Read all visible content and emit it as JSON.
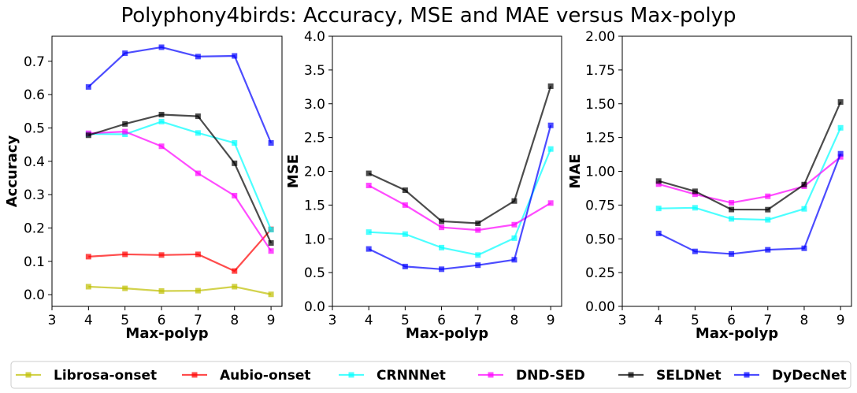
{
  "title": "Polyphony4birds: Accuracy, MSE and MAE versus Max-polyp",
  "legend": {
    "placement": "bottom-center",
    "entries": [
      "Librosa-onset",
      "Aubio-onset",
      "CRNNNet",
      "DND-SED",
      "SELDNet",
      "DyDecNet"
    ]
  },
  "series_colors": {
    "Librosa-onset": "#bfbf00",
    "Aubio-onset": "#ff0000",
    "CRNNNet": "#00ffff",
    "DND-SED": "#ff00ff",
    "SELDNet": "#000000",
    "DyDecNet": "#0000ff"
  },
  "chart_data": [
    {
      "type": "line",
      "xlabel": "Max-polyp",
      "ylabel": "Accuracy",
      "x": [
        4,
        5,
        6,
        7,
        8,
        9
      ],
      "xlim": [
        3,
        9.3
      ],
      "ylim": [
        -0.035,
        0.775
      ],
      "xticks": [
        3,
        4,
        5,
        6,
        7,
        8,
        9
      ],
      "yticks": [
        0.0,
        0.1,
        0.2,
        0.3,
        0.4,
        0.5,
        0.6,
        0.7
      ],
      "ytick_labels": [
        "0.0",
        "0.1",
        "0.2",
        "0.3",
        "0.4",
        "0.5",
        "0.6",
        "0.7"
      ],
      "grid": false,
      "series": [
        {
          "name": "Librosa-onset",
          "values": [
            0.024,
            0.019,
            0.011,
            0.012,
            0.024,
            0.001
          ]
        },
        {
          "name": "Aubio-onset",
          "values": [
            0.114,
            0.121,
            0.119,
            0.121,
            0.071,
            0.196
          ]
        },
        {
          "name": "CRNNNet",
          "values": [
            0.482,
            0.481,
            0.519,
            0.485,
            0.455,
            0.195
          ]
        },
        {
          "name": "DND-SED",
          "values": [
            0.484,
            0.489,
            0.445,
            0.364,
            0.297,
            0.131
          ]
        },
        {
          "name": "SELDNet",
          "values": [
            0.478,
            0.512,
            0.54,
            0.535,
            0.394,
            0.155
          ]
        },
        {
          "name": "DyDecNet",
          "values": [
            0.623,
            0.724,
            0.742,
            0.714,
            0.716,
            0.455
          ]
        }
      ]
    },
    {
      "type": "line",
      "xlabel": "Max-polyp",
      "ylabel": "MSE",
      "x": [
        4,
        5,
        6,
        7,
        8,
        9
      ],
      "xlim": [
        3,
        9.3
      ],
      "ylim": [
        0.0,
        4.0
      ],
      "xticks": [
        3,
        4,
        5,
        6,
        7,
        8,
        9
      ],
      "yticks": [
        0.0,
        0.5,
        1.0,
        1.5,
        2.0,
        2.5,
        3.0,
        3.5,
        4.0
      ],
      "ytick_labels": [
        "0.0",
        "0.5",
        "1.0",
        "1.5",
        "2.0",
        "2.5",
        "3.0",
        "3.5",
        "4.0"
      ],
      "grid": false,
      "series": [
        {
          "name": "CRNNNet",
          "values": [
            1.1,
            1.07,
            0.87,
            0.76,
            1.01,
            2.33
          ]
        },
        {
          "name": "DND-SED",
          "values": [
            1.79,
            1.5,
            1.17,
            1.13,
            1.21,
            1.53
          ]
        },
        {
          "name": "SELDNet",
          "values": [
            1.97,
            1.72,
            1.26,
            1.23,
            1.56,
            3.26
          ]
        },
        {
          "name": "DyDecNet",
          "values": [
            0.85,
            0.59,
            0.55,
            0.61,
            0.69,
            2.68
          ]
        }
      ]
    },
    {
      "type": "line",
      "xlabel": "Max-polyp",
      "ylabel": "MAE",
      "x": [
        4,
        5,
        6,
        7,
        8,
        9
      ],
      "xlim": [
        3,
        9.3
      ],
      "ylim": [
        0.0,
        2.0
      ],
      "xticks": [
        3,
        4,
        5,
        6,
        7,
        8,
        9
      ],
      "yticks": [
        0.0,
        0.25,
        0.5,
        0.75,
        1.0,
        1.25,
        1.5,
        1.75,
        2.0
      ],
      "ytick_labels": [
        "0.00",
        "0.25",
        "0.50",
        "0.75",
        "1.00",
        "1.25",
        "1.50",
        "1.75",
        "2.00"
      ],
      "grid": false,
      "series": [
        {
          "name": "CRNNNet",
          "values": [
            0.725,
            0.73,
            0.648,
            0.641,
            0.722,
            1.322
          ]
        },
        {
          "name": "DND-SED",
          "values": [
            0.905,
            0.83,
            0.767,
            0.815,
            0.889,
            1.107
          ]
        },
        {
          "name": "SELDNet",
          "values": [
            0.928,
            0.852,
            0.717,
            0.716,
            0.902,
            1.513
          ]
        },
        {
          "name": "DyDecNet",
          "values": [
            0.54,
            0.407,
            0.388,
            0.419,
            0.43,
            1.13
          ]
        }
      ]
    }
  ]
}
